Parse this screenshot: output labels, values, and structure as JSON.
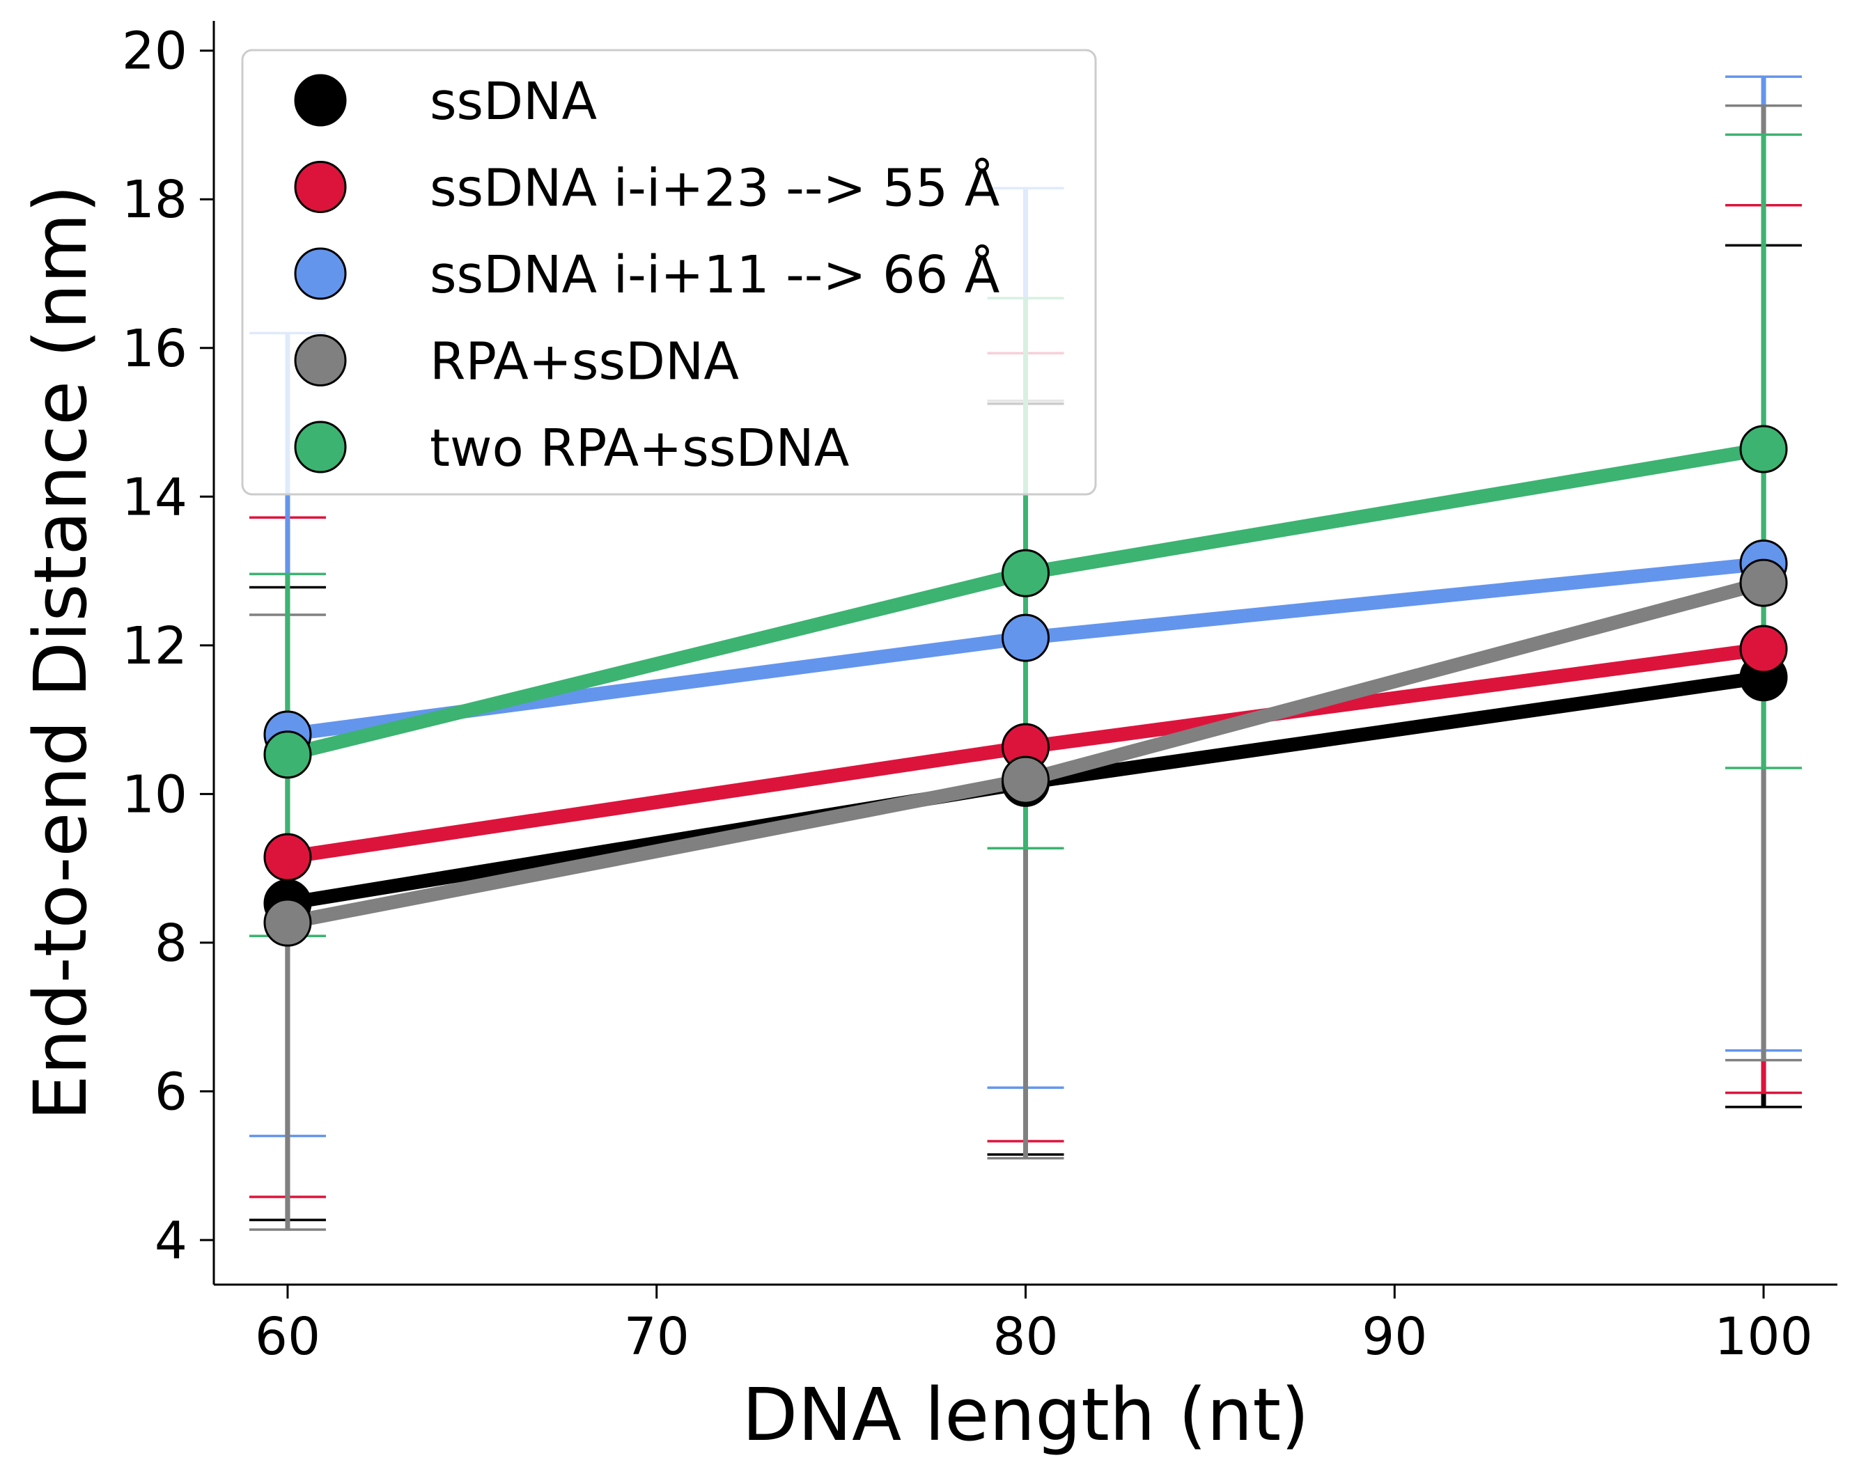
{
  "chart_data": {
    "type": "line",
    "title": "",
    "xlabel": "DNA length (nt)",
    "ylabel": "End-to-end Distance (nm)",
    "x": [
      60,
      80,
      100
    ],
    "xlim": [
      58,
      102
    ],
    "ylim": [
      3.4,
      20.4
    ],
    "xticks": [
      60,
      70,
      80,
      90,
      100
    ],
    "yticks": [
      4,
      6,
      8,
      10,
      12,
      14,
      16,
      18,
      20
    ],
    "grid": false,
    "legend_position": "top-left",
    "series": [
      {
        "name": "ssDNA",
        "color": "#000000",
        "values": [
          8.53,
          10.15,
          11.57
        ],
        "err_low": [
          4.27,
          5.15,
          5.79
        ],
        "err_high": [
          12.78,
          15.25,
          17.38
        ]
      },
      {
        "name": "ssDNA i-i+23 --> 55 Å",
        "color": "#dc143c",
        "values": [
          9.15,
          10.63,
          11.95
        ],
        "err_low": [
          4.58,
          5.33,
          5.98
        ],
        "err_high": [
          13.72,
          15.93,
          17.92
        ]
      },
      {
        "name": "ssDNA i-i+11 --> 66 Å",
        "color": "#6495ed",
        "values": [
          10.8,
          12.1,
          13.1
        ],
        "err_low": [
          5.4,
          6.05,
          6.55
        ],
        "err_high": [
          16.2,
          18.15,
          19.65
        ]
      },
      {
        "name": "RPA+ssDNA",
        "color": "#808080",
        "values": [
          8.27,
          10.19,
          12.84
        ],
        "err_low": [
          4.14,
          5.1,
          6.42
        ],
        "err_high": [
          12.41,
          15.29,
          19.26
        ]
      },
      {
        "name": "two RPA+ssDNA",
        "color": "#3cb371",
        "values": [
          10.53,
          12.97,
          14.64
        ],
        "err_low": [
          8.09,
          9.27,
          10.35
        ],
        "err_high": [
          12.96,
          16.67,
          18.87
        ]
      }
    ]
  }
}
